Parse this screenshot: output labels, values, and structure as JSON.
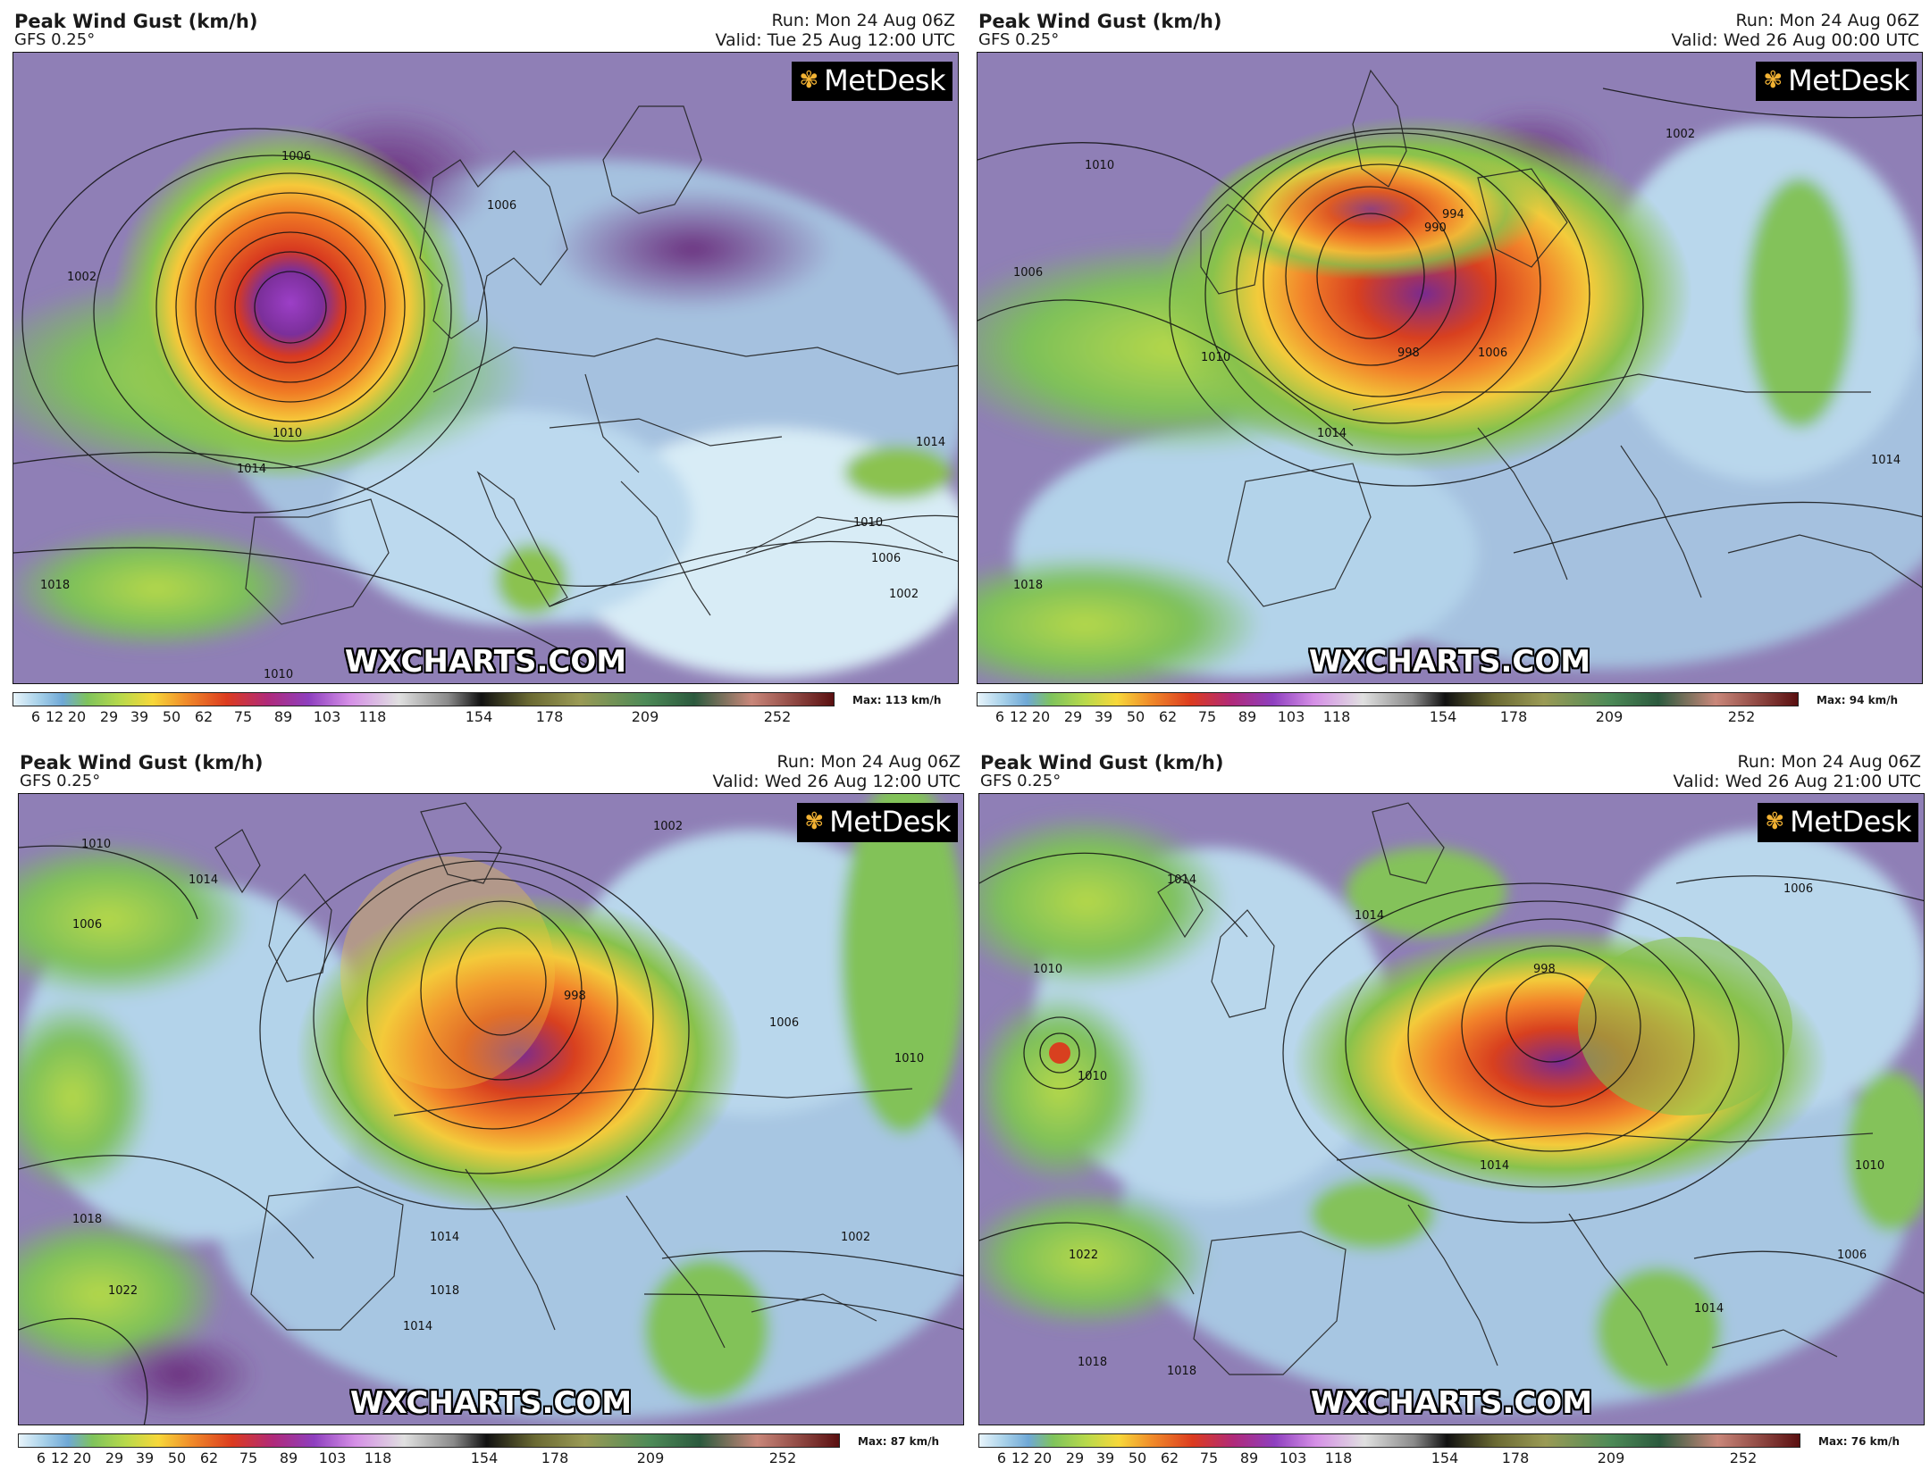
{
  "colorbar": {
    "ticks": [
      "6",
      "12",
      "20",
      "29",
      "39",
      "50",
      "62",
      "75",
      "89",
      "103",
      "118",
      "154",
      "178",
      "209",
      "252"
    ]
  },
  "panels": [
    {
      "title": "Peak Wind Gust (km/h)",
      "model": "GFS 0.25°",
      "run": "Run: Mon 24 Aug 06Z",
      "valid": "Valid: Tue 25 Aug 12:00 UTC",
      "logo": "MetDesk",
      "watermark": "WXCHARTS.COM",
      "max": "Max: 113 km/h",
      "isobar_labels": [
        "1006",
        "1006",
        "1002",
        "1010",
        "1014",
        "1018",
        "1010",
        "1006",
        "1002",
        "1010",
        "1014"
      ]
    },
    {
      "title": "Peak Wind Gust (km/h)",
      "model": "GFS 0.25°",
      "run": "Run: Mon 24 Aug 06Z",
      "valid": "Valid: Wed 26 Aug 00:00 UTC",
      "logo": "MetDesk",
      "watermark": "WXCHARTS.COM",
      "max": "Max: 94 km/h",
      "isobar_labels": [
        "1010",
        "1006",
        "994",
        "990",
        "998",
        "1010",
        "1014",
        "1006",
        "1002",
        "1018",
        "1014"
      ]
    },
    {
      "title": "Peak Wind Gust (km/h)",
      "model": "GFS 0.25°",
      "run": "Run: Mon 24 Aug 06Z",
      "valid": "Valid: Wed 26 Aug 12:00 UTC",
      "logo": "MetDesk",
      "watermark": "WXCHARTS.COM",
      "max": "Max: 87 km/h",
      "isobar_labels": [
        "1010",
        "1014",
        "1006",
        "1002",
        "998",
        "1006",
        "1010",
        "1018",
        "1022",
        "1014",
        "1018",
        "1014",
        "1002"
      ]
    },
    {
      "title": "Peak Wind Gust (km/h)",
      "model": "GFS 0.25°",
      "run": "Run: Mon 24 Aug 06Z",
      "valid": "Valid: Wed 26 Aug 21:00 UTC",
      "logo": "MetDesk",
      "watermark": "WXCHARTS.COM",
      "max": "Max: 76 km/h",
      "isobar_labels": [
        "1014",
        "1010",
        "1010",
        "1014",
        "998",
        "1006",
        "1014",
        "1010",
        "1022",
        "1006",
        "1018",
        "1018",
        "1014"
      ]
    }
  ]
}
